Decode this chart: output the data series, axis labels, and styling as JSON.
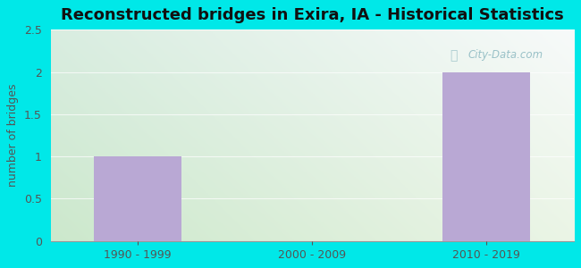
{
  "title": "Reconstructed bridges in Exira, IA - Historical Statistics",
  "categories": [
    "1990 - 1999",
    "2000 - 2009",
    "2010 - 2019"
  ],
  "values": [
    1,
    0,
    2
  ],
  "bar_color": "#b9a8d4",
  "bar_edge_color": "#b9a8d4",
  "ylabel": "number of bridges",
  "ylim": [
    0,
    2.5
  ],
  "yticks": [
    0,
    0.5,
    1,
    1.5,
    2,
    2.5
  ],
  "bg_gradient_topleft": "#c8ede0",
  "bg_gradient_topright": "#e8f4f8",
  "bg_gradient_bottom": "#e0f2e8",
  "outer_bg": "#00e8e8",
  "title_color": "#111111",
  "axis_label_color": "#555555",
  "tick_label_color": "#555555",
  "watermark_text": "City-Data.com",
  "title_fontsize": 13,
  "ylabel_fontsize": 9,
  "tick_fontsize": 9
}
